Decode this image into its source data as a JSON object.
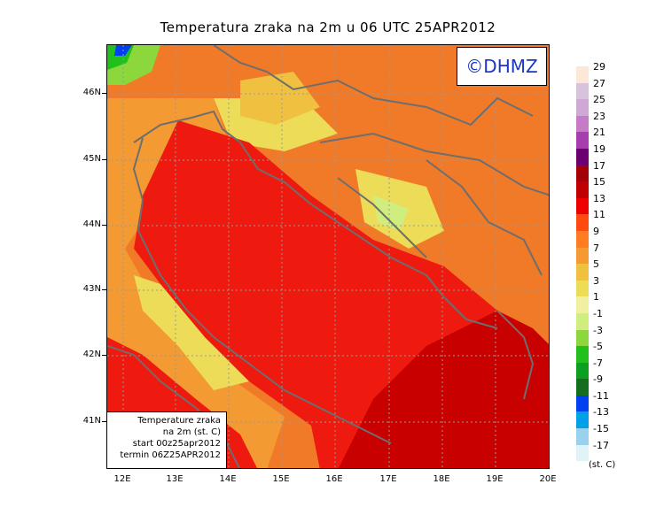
{
  "title": "Temperatura zraka na 2m u 06 UTC 25APR2012",
  "logo": "©DHMZ",
  "infobox": {
    "line1": "Temperature zraka",
    "line2": "na 2m (st. C)",
    "line3": "start 00z25apr2012",
    "line4": "termin 06Z25APR2012"
  },
  "y_axis": [
    {
      "label": "46N"
    },
    {
      "label": "45N"
    },
    {
      "label": "44N"
    },
    {
      "label": "43N"
    },
    {
      "label": "42N"
    },
    {
      "label": "41N"
    }
  ],
  "x_axis": [
    {
      "label": "12E"
    },
    {
      "label": "13E"
    },
    {
      "label": "14E"
    },
    {
      "label": "15E"
    },
    {
      "label": "16E"
    },
    {
      "label": "17E"
    },
    {
      "label": "18E"
    },
    {
      "label": "19E"
    },
    {
      "label": "20E"
    }
  ],
  "legend": {
    "unit": "(st. C)",
    "labels": [
      "29",
      "27",
      "25",
      "23",
      "21",
      "19",
      "17",
      "15",
      "13",
      "11",
      "9",
      "7",
      "5",
      "3",
      "1",
      "-1",
      "-3",
      "-5",
      "-7",
      "-9",
      "-11",
      "-13",
      "-15",
      "-17"
    ],
    "colors": [
      "#fde8d8",
      "#d8c3dc",
      "#cfa8d6",
      "#c77ac8",
      "#a63fad",
      "#6d0070",
      "#a30008",
      "#c00000",
      "#ee0000",
      "#ff4a10",
      "#ff7c20",
      "#f59a32",
      "#f0c040",
      "#ecdc58",
      "#f0f0a0",
      "#d0ee80",
      "#8cd73c",
      "#22c01c",
      "#0da020",
      "#156e1e",
      "#0040f0",
      "#00a0e8",
      "#9ad2ee",
      "#e0f4f8"
    ]
  },
  "map_colors": {
    "sea_warm": "#ee1a10",
    "sea_hot": "#c80000",
    "coast_mild": "#f39a32",
    "land_mild": "#f0c040",
    "land_cool": "#ecdc58",
    "land_cold": "#d0ee80",
    "alps_green": "#22c01c",
    "alps_blue": "#0040f0",
    "inland": "#f07a28",
    "border": "#707070"
  }
}
